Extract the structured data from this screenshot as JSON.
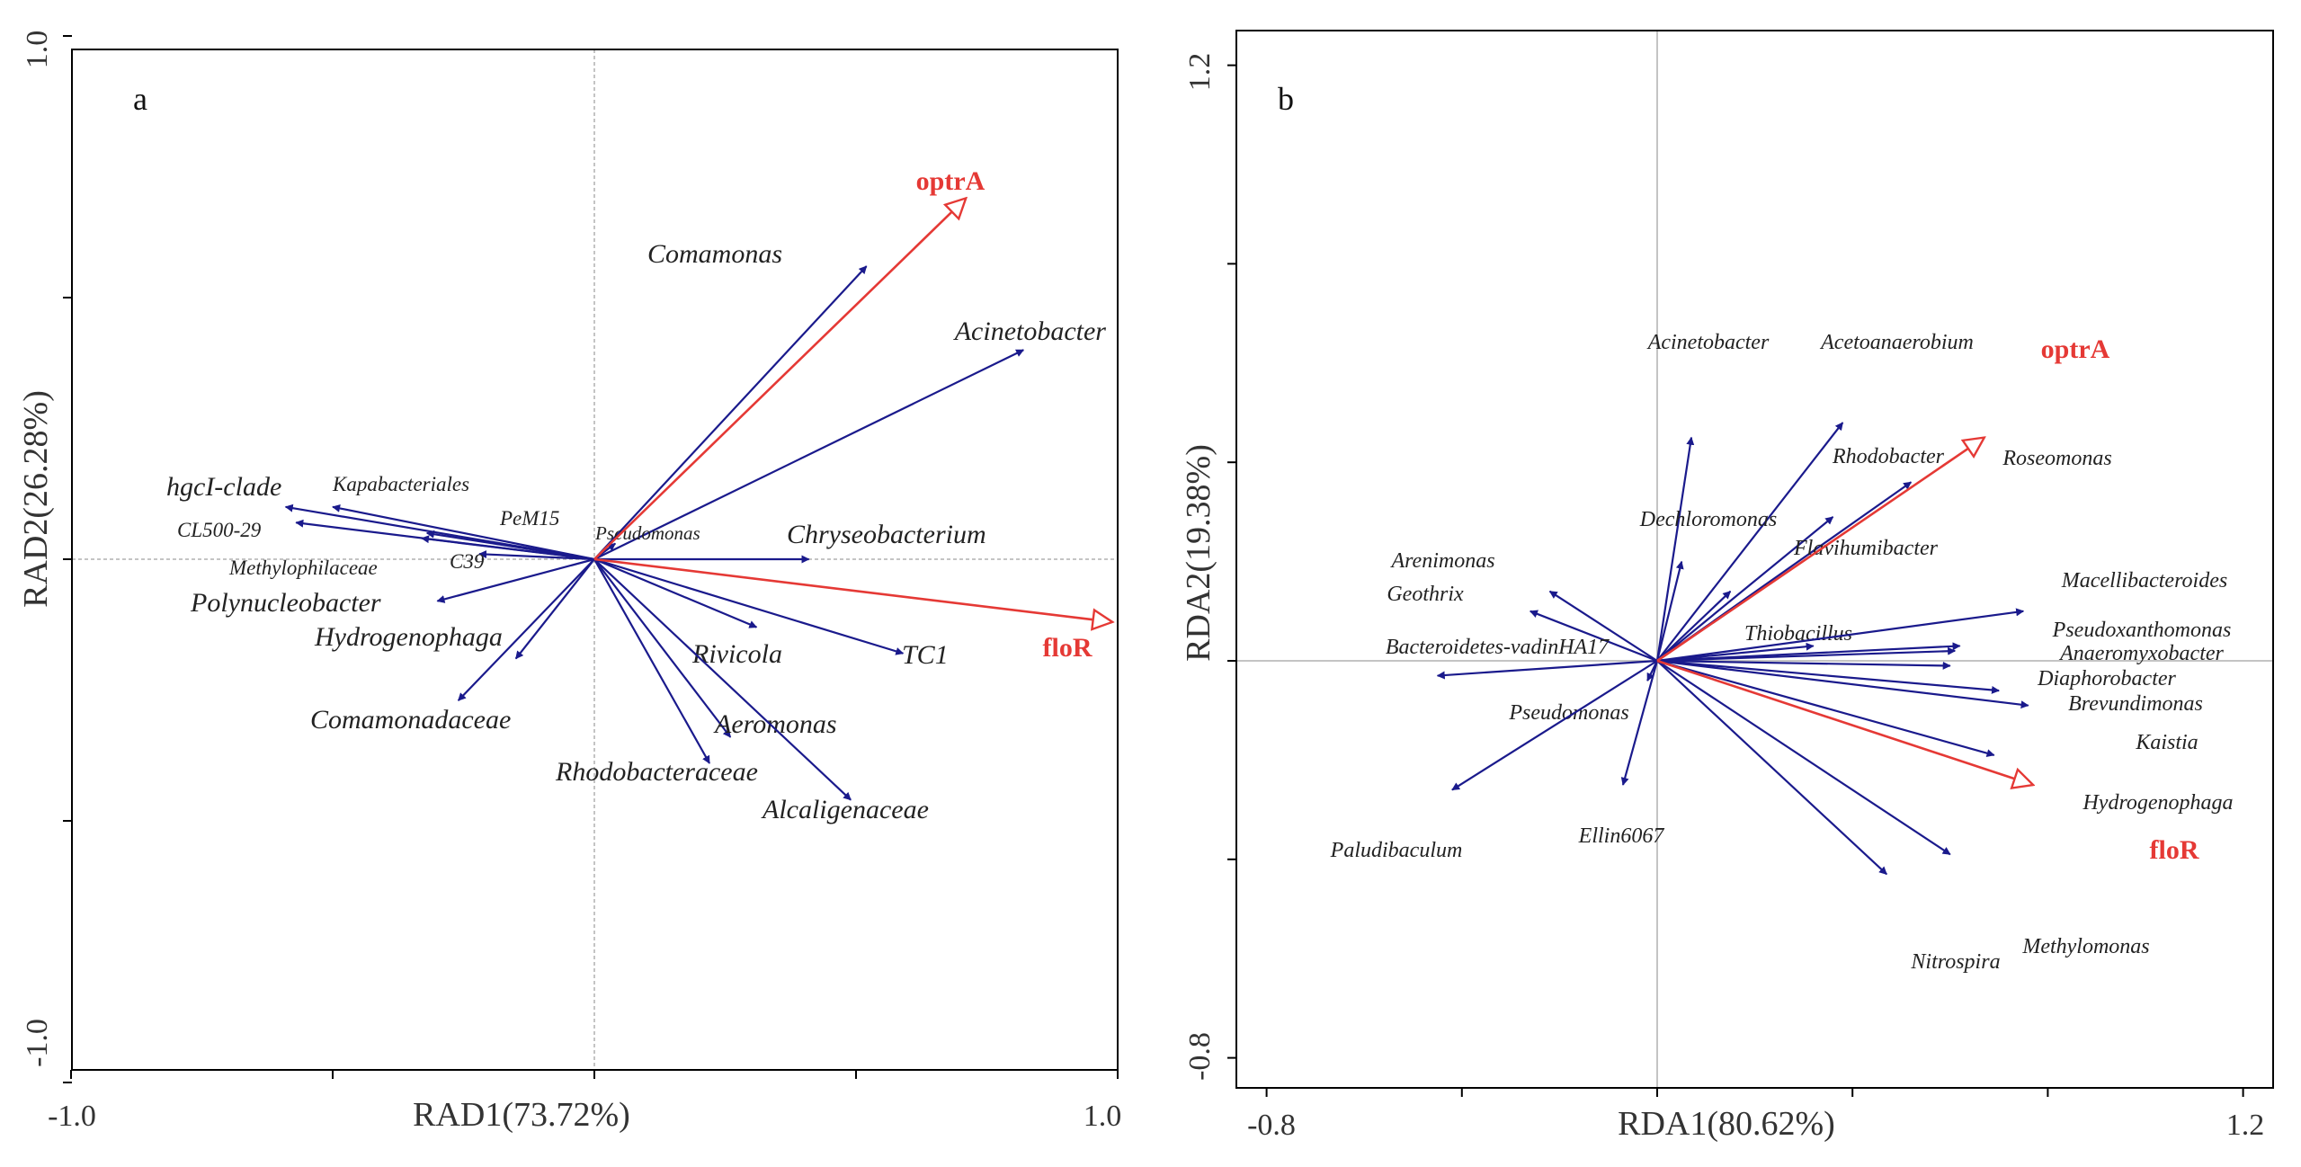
{
  "colors": {
    "species": "#1a1a8c",
    "genes": "#e53935",
    "frame": "#000000",
    "zero_line": "#b0b0b0"
  },
  "chart_data": [
    {
      "type": "biplot",
      "panel": "a",
      "xlabel": "RAD1(73.72%)",
      "ylabel": "RAD2(26.28%)",
      "xlim": [
        -1.0,
        1.0
      ],
      "ylim": [
        -1.0,
        1.0
      ],
      "x_tick_labels": [
        {
          "value": -1.0,
          "label": "-1.0"
        },
        {
          "value": 1.0,
          "label": "1.0"
        }
      ],
      "y_tick_labels": [
        {
          "value": 1.0,
          "label": "1.0"
        },
        {
          "value": -1.0,
          "label": "-1.0"
        }
      ],
      "x_ticks": [
        -1.0,
        -0.5,
        0,
        0.5,
        1.0
      ],
      "y_ticks": [
        -1.0,
        -0.5,
        0,
        0.5,
        1.0
      ],
      "species": [
        {
          "name": "Comamonas",
          "x": 0.52,
          "y": 0.56,
          "size": 30
        },
        {
          "name": "Acinetobacter",
          "x": 0.82,
          "y": 0.4,
          "size": 30
        },
        {
          "name": "Chryseobacterium",
          "x": 0.41,
          "y": 0.0,
          "size": 30
        },
        {
          "name": "Pseudomonas",
          "x": 0.04,
          "y": 0.03,
          "size": 21
        },
        {
          "name": "TC1",
          "x": 0.59,
          "y": -0.18,
          "size": 30
        },
        {
          "name": "Rivicola",
          "x": 0.31,
          "y": -0.13,
          "size": 30
        },
        {
          "name": "Aeromonas",
          "x": 0.26,
          "y": -0.34,
          "size": 30
        },
        {
          "name": "Rhodobacteraceae",
          "x": 0.22,
          "y": -0.39,
          "size": 30
        },
        {
          "name": "Alcaligenaceae",
          "x": 0.49,
          "y": -0.46,
          "size": 30
        },
        {
          "name": "hgcI-clade",
          "x": -0.59,
          "y": 0.1,
          "size": 30
        },
        {
          "name": "Kapabacteriales",
          "x": -0.5,
          "y": 0.1,
          "size": 23
        },
        {
          "name": "CL500-29",
          "x": -0.57,
          "y": 0.07,
          "size": 23
        },
        {
          "name": "PeM15",
          "x": -0.32,
          "y": 0.05,
          "size": 23
        },
        {
          "name": "Methylophilaceae",
          "x": -0.33,
          "y": 0.04,
          "size": 23
        },
        {
          "name": "C39",
          "x": -0.22,
          "y": 0.01,
          "size": 23
        },
        {
          "name": "Polynucleobacter",
          "x": -0.3,
          "y": -0.08,
          "size": 30
        },
        {
          "name": "Hydrogenophaga",
          "x": -0.15,
          "y": -0.19,
          "size": 30
        },
        {
          "name": "Comamonadaceae",
          "x": -0.26,
          "y": -0.27,
          "size": 30
        }
      ],
      "genes": [
        {
          "name": "optrA",
          "x": 0.71,
          "y": 0.69
        },
        {
          "name": "floR",
          "x": 0.99,
          "y": -0.12
        }
      ]
    },
    {
      "type": "biplot",
      "panel": "b",
      "xlabel": "RDA1(80.62%)",
      "ylabel": "RDA2(19.38%)",
      "xlim": [
        -0.8,
        1.2
      ],
      "ylim": [
        -0.8,
        1.2
      ],
      "x_tick_labels": [
        {
          "value": -0.8,
          "label": "-0.8"
        },
        {
          "value": 1.2,
          "label": "1.2"
        }
      ],
      "y_tick_labels": [
        {
          "value": 1.2,
          "label": "1.2"
        },
        {
          "value": -0.8,
          "label": "-0.8"
        }
      ],
      "x_ticks": [
        -0.8,
        -0.4,
        0,
        0.4,
        0.8,
        1.2
      ],
      "y_ticks": [
        -0.8,
        -0.4,
        0,
        0.4,
        0.8,
        1.2
      ],
      "species": [
        {
          "name": "Acinetobacter",
          "x": 0.07,
          "y": 0.45
        },
        {
          "name": "Acetoanaerobium",
          "x": 0.38,
          "y": 0.48
        },
        {
          "name": "Rhodobacter",
          "x": 0.36,
          "y": 0.29
        },
        {
          "name": "Roseomonas",
          "x": 0.52,
          "y": 0.36
        },
        {
          "name": "Dechloromonas",
          "x": 0.05,
          "y": 0.2
        },
        {
          "name": "Flavihumibacter",
          "x": 0.15,
          "y": 0.14
        },
        {
          "name": "Thiobacillus",
          "x": 0.32,
          "y": 0.03
        },
        {
          "name": "Macellibacteroides",
          "x": 0.75,
          "y": 0.1
        },
        {
          "name": "Pseudoxanthomonas",
          "x": 0.62,
          "y": 0.03
        },
        {
          "name": "Anaeromyxobacter",
          "x": 0.61,
          "y": 0.02
        },
        {
          "name": "Diaphorobacter",
          "x": 0.6,
          "y": -0.01
        },
        {
          "name": "Brevundimonas",
          "x": 0.7,
          "y": -0.06
        },
        {
          "name": "Kaistia",
          "x": 0.76,
          "y": -0.09
        },
        {
          "name": "Hydrogenophaga",
          "x": 0.69,
          "y": -0.19
        },
        {
          "name": "Methylomonas",
          "x": 0.6,
          "y": -0.39
        },
        {
          "name": "Nitrospira",
          "x": 0.47,
          "y": -0.43
        },
        {
          "name": "Arenimonas",
          "x": -0.22,
          "y": 0.14
        },
        {
          "name": "Geothrix",
          "x": -0.26,
          "y": 0.1
        },
        {
          "name": "Bacteroidetes-vadinHA17",
          "x": -0.45,
          "y": -0.03
        },
        {
          "name": "Pseudomonas",
          "x": -0.02,
          "y": -0.04
        },
        {
          "name": "Paludibaculum",
          "x": -0.42,
          "y": -0.26
        },
        {
          "name": "Ellin6067",
          "x": -0.07,
          "y": -0.25
        }
      ],
      "genes": [
        {
          "name": "optrA",
          "x": 0.67,
          "y": 0.45
        },
        {
          "name": "floR",
          "x": 0.77,
          "y": -0.25
        }
      ]
    }
  ]
}
